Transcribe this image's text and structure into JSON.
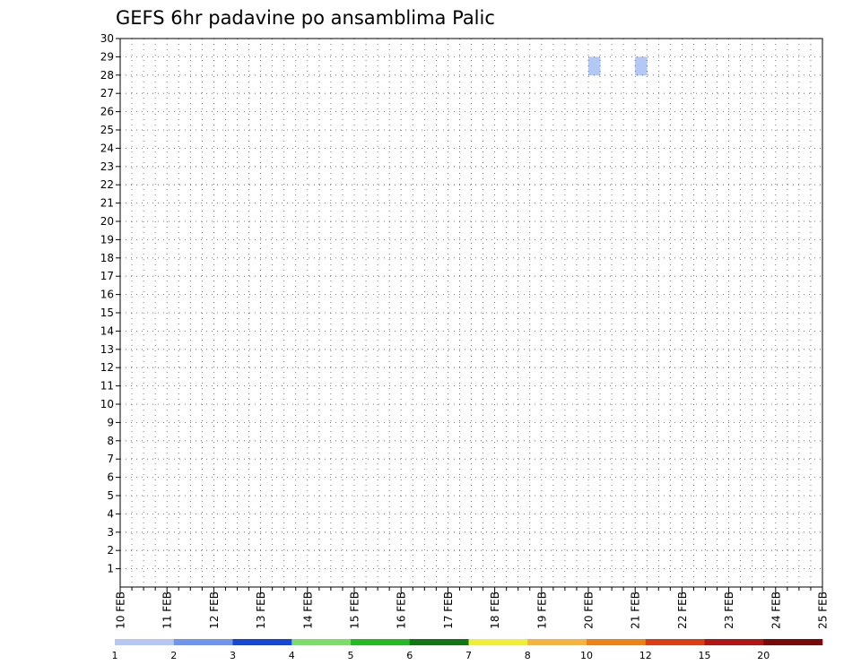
{
  "chart_data": {
    "type": "heatmap",
    "title": "GEFS 6hr padavine po ansamblima Palic",
    "xlabel": "",
    "ylabel": "",
    "x_start": "10 FEB 00Z",
    "x_step_hours": 6,
    "x_tick_labels": [
      "10 FEB",
      "11 FEB",
      "12 FEB",
      "13 FEB",
      "14 FEB",
      "15 FEB",
      "16 FEB",
      "17 FEB",
      "18 FEB",
      "19 FEB",
      "20 FEB",
      "21 FEB",
      "22 FEB",
      "23 FEB",
      "24 FEB",
      "25 FEB"
    ],
    "y_tick_labels": [
      "1",
      "2",
      "3",
      "4",
      "5",
      "6",
      "7",
      "8",
      "9",
      "10",
      "11",
      "12",
      "13",
      "14",
      "15",
      "16",
      "17",
      "18",
      "19",
      "20",
      "21",
      "22",
      "23",
      "24",
      "25",
      "26",
      "27",
      "28",
      "29",
      "30"
    ],
    "ylim": [
      0,
      30
    ],
    "grid": true,
    "legend": {
      "placement": "bottom",
      "labels": [
        "1",
        "2",
        "3",
        "4",
        "5",
        "6",
        "7",
        "8",
        "10",
        "12",
        "15",
        "20"
      ],
      "colors": [
        "#b4c8f4",
        "#6e96ee",
        "#1448d8",
        "#78e064",
        "#22bb22",
        "#117711",
        "#f0f032",
        "#f8b43a",
        "#f08214",
        "#e03c14",
        "#b41414",
        "#7a0a0a"
      ]
    },
    "cells": [
      {
        "t": "21 FEB 00Z",
        "member": 29,
        "level": 1
      },
      {
        "t": "21 FEB 00Z",
        "member": 29,
        "level": 1
      },
      {
        "t": "20 FEB 00Z",
        "member": 29,
        "level": 1
      }
    ]
  }
}
